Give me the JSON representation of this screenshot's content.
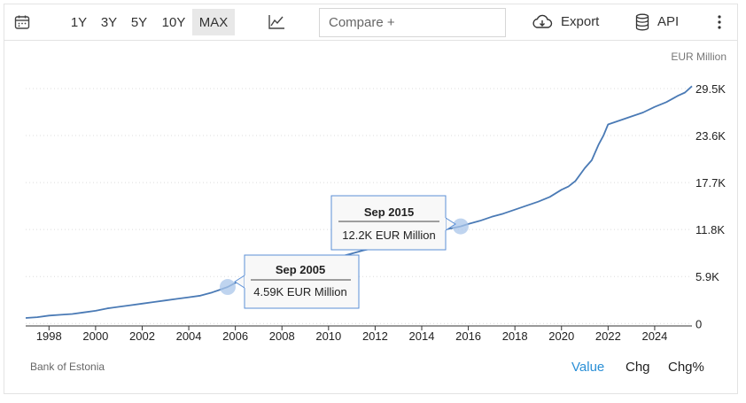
{
  "toolbar": {
    "ranges": [
      "1Y",
      "3Y",
      "5Y",
      "10Y",
      "MAX"
    ],
    "active_range": "MAX",
    "compare_placeholder": "Compare +",
    "export_label": "Export",
    "api_label": "API"
  },
  "footer": {
    "source": "Bank of Estonia",
    "value_label": "Value",
    "chg_label": "Chg",
    "chgpct_label": "Chg%"
  },
  "colors": {
    "line": "#4a7ab5",
    "active_link": "#2a8fd6",
    "marker": "#aac6ea"
  },
  "tooltips": [
    {
      "date": "Sep 2005",
      "value": "4.59K EUR Million"
    },
    {
      "date": "Sep 2015",
      "value": "12.2K EUR Million"
    }
  ],
  "chart_data": {
    "type": "line",
    "unit_label": "EUR Million",
    "xlim": [
      1997.0,
      2025.6
    ],
    "ylim": [
      -300,
      31500
    ],
    "x_ticks": [
      "1998",
      "2000",
      "2002",
      "2004",
      "2006",
      "2008",
      "2010",
      "2012",
      "2014",
      "2016",
      "2018",
      "2020",
      "2022",
      "2024"
    ],
    "y_ticks": [
      {
        "value": 0,
        "label": "0"
      },
      {
        "value": 5900,
        "label": "5.9K"
      },
      {
        "value": 11800,
        "label": "11.8K"
      },
      {
        "value": 17700,
        "label": "17.7K"
      },
      {
        "value": 23600,
        "label": "23.6K"
      },
      {
        "value": 29500,
        "label": "29.5K"
      }
    ],
    "grid": "horizontal dotted",
    "highlighted_points": [
      {
        "x": 2005.67,
        "y": 4590
      },
      {
        "x": 2015.67,
        "y": 12200
      }
    ],
    "series": [
      {
        "x": [
          1997.0,
          1997.5,
          1998.0,
          1998.5,
          1999.0,
          1999.5,
          2000.0,
          2000.5,
          2001.0,
          2001.5,
          2002.0,
          2002.5,
          2003.0,
          2003.5,
          2004.0,
          2004.5,
          2005.0,
          2005.3,
          2005.67,
          2006.0,
          2006.5,
          2007.0,
          2007.5,
          2008.0,
          2008.5,
          2009.0,
          2009.5,
          2010.0,
          2010.5,
          2011.0,
          2011.5,
          2012.0,
          2012.5,
          2013.0,
          2013.5,
          2014.0,
          2014.5,
          2015.0,
          2015.67,
          2016.0,
          2016.5,
          2017.0,
          2017.5,
          2018.0,
          2018.5,
          2019.0,
          2019.5,
          2020.0,
          2020.3,
          2020.6,
          2021.0,
          2021.3,
          2021.6,
          2021.8,
          2022.0,
          2022.5,
          2023.0,
          2023.5,
          2024.0,
          2024.5,
          2025.0,
          2025.3,
          2025.6
        ],
        "values": [
          700,
          800,
          1000,
          1100,
          1200,
          1400,
          1600,
          1900,
          2100,
          2300,
          2500,
          2700,
          2900,
          3100,
          3300,
          3500,
          3900,
          4200,
          4590,
          5100,
          5600,
          6200,
          6800,
          7300,
          7700,
          7800,
          7900,
          8200,
          8400,
          8800,
          9200,
          9500,
          9800,
          10200,
          10600,
          11100,
          11500,
          11800,
          12200,
          12500,
          12900,
          13400,
          13800,
          14300,
          14800,
          15300,
          15900,
          16800,
          17200,
          17900,
          19500,
          20500,
          22500,
          23600,
          25000,
          25500,
          26000,
          26500,
          27200,
          27800,
          28600,
          29000,
          29800
        ]
      }
    ]
  }
}
